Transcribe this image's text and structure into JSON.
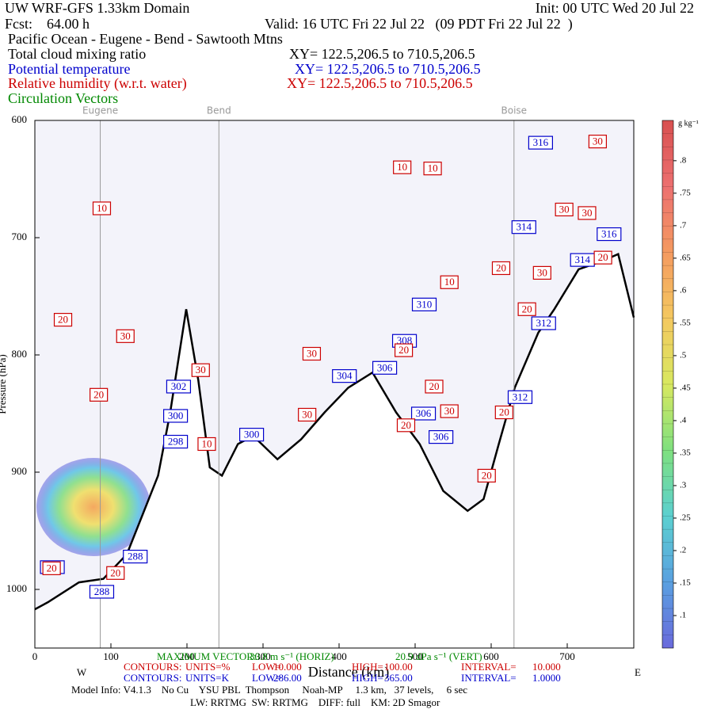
{
  "chart_data": {
    "type": "cross-section",
    "title": "UW WRF-GFS 1.33km Domain",
    "init": "Init: 00 UTC Wed 20 Jul 22",
    "fcst": "Fcst:    64.00 h",
    "valid": "Valid: 16 UTC Fri 22 Jul 22   (09 PDT Fri 22 Jul 22  )",
    "subtitle": "Pacific Ocean - Eugene - Bend - Sawtooth Mtns",
    "series": [
      {
        "name": "Total cloud mixing ratio",
        "color": "#000000",
        "xy": "XY= 122.5,206.5 to 710.5,206.5"
      },
      {
        "name": "Potential temperature",
        "color": "#0000cc",
        "xy": "XY= 122.5,206.5 to 710.5,206.5",
        "x": [
          665,
          643,
          755,
          720,
          512,
          669,
          486,
          460,
          407,
          189,
          185,
          185,
          638,
          511,
          534,
          285,
          88,
          132,
          23
        ],
        "y": [
          619,
          691,
          697,
          719,
          757,
          773,
          788,
          811,
          818,
          827,
          852,
          874,
          836,
          850,
          870,
          868,
          1002,
          972,
          981
        ],
        "values": [
          316,
          314,
          316,
          314,
          310,
          312,
          308,
          306,
          304,
          302,
          300,
          298,
          312,
          306,
          306,
          300,
          288,
          288,
          288
        ]
      },
      {
        "name": "Relative humidity (w.r.t. water)",
        "color": "#cc0000",
        "xy": "XY= 122.5,206.5 to 710.5,206.5",
        "x": [
          740,
          483,
          523,
          88,
          696,
          726,
          613,
          545,
          667,
          747,
          647,
          37,
          119,
          364,
          485,
          84,
          218,
          525,
          545,
          358,
          488,
          226,
          617,
          594,
          22,
          106
        ],
        "y": [
          618,
          640,
          641,
          675,
          676,
          679,
          726,
          738,
          730,
          717,
          761,
          770,
          784,
          799,
          796,
          834,
          813,
          827,
          848,
          851,
          860,
          876,
          849,
          903,
          982,
          986
        ],
        "values": [
          30,
          10,
          10,
          10,
          30,
          30,
          20,
          10,
          30,
          20,
          20,
          20,
          30,
          30,
          20,
          20,
          30,
          20,
          30,
          30,
          20,
          10,
          20,
          20,
          20,
          20
        ]
      },
      {
        "name": "Circulation Vectors",
        "color": "#008800"
      }
    ],
    "terrain": {
      "x": [
        0,
        17,
        58,
        90,
        121,
        162,
        178,
        199,
        215,
        230,
        246,
        267,
        287,
        319,
        350,
        381,
        412,
        444,
        475,
        506,
        537,
        569,
        590,
        610,
        631,
        662,
        683,
        715,
        746,
        767,
        787.5
      ],
      "y": [
        1017,
        1011,
        994,
        991,
        970,
        903,
        849,
        761,
        822,
        896,
        903,
        876,
        869,
        889,
        872,
        849,
        828,
        815,
        849,
        876,
        916,
        933,
        923,
        876,
        828,
        781,
        761,
        727,
        720,
        714,
        768
      ]
    },
    "landmarks": [
      {
        "name": "Eugene",
        "x": 86
      },
      {
        "name": "Bend",
        "x": 242
      },
      {
        "name": "Boise",
        "x": 630
      }
    ],
    "xlabel": "Distance (km)",
    "ylabel": "Pressure (hPa)",
    "xlim": [
      0,
      787.5
    ],
    "xticks": [
      0,
      100,
      200,
      300,
      400,
      500,
      600,
      700
    ],
    "ylim": [
      1050,
      600
    ],
    "yticks": [
      600,
      700,
      800,
      900,
      1000
    ],
    "west": "W",
    "east": "E",
    "colorbar": {
      "units": "g kg⁻¹",
      "lim": [
        0.05,
        0.862
      ],
      "colors": [
        "#6a6adc",
        "#5aa0e0",
        "#5cd0d0",
        "#7fe07f",
        "#d8e860",
        "#f4c860",
        "#f49a60",
        "#ec7070",
        "#d85050"
      ],
      "ticks": [
        {
          "value": 0.1,
          "label": ".1"
        },
        {
          "value": 0.15,
          "label": ".15"
        },
        {
          "value": 0.2,
          "label": ".2"
        },
        {
          "value": 0.25,
          "label": ".25"
        },
        {
          "value": 0.3,
          "label": ".3"
        },
        {
          "value": 0.35,
          "label": ".35"
        },
        {
          "value": 0.4,
          "label": ".4"
        },
        {
          "value": 0.45,
          "label": ".45"
        },
        {
          "value": 0.5,
          "label": ".5"
        },
        {
          "value": 0.55,
          "label": ".55"
        },
        {
          "value": 0.6,
          "label": ".6"
        },
        {
          "value": 0.65,
          "label": ".65"
        },
        {
          "value": 0.7,
          "label": ".7"
        },
        {
          "value": 0.75,
          "label": ".75"
        },
        {
          "value": 0.8,
          "label": ".8"
        }
      ]
    },
    "footer": {
      "max_vector": [
        "MAXIMUM VECTOR:",
        "30.8 m s⁻¹ (HORIZ)",
        "20.9 dPa s⁻¹ (VERT)"
      ],
      "contours_rh": [
        "CONTOURS:",
        "UNITS=%",
        "LOW=",
        "10.000",
        "HIGH=",
        "100.00",
        "INTERVAL=",
        "10.000"
      ],
      "contours_theta": [
        "CONTOURS:",
        "UNITS=K",
        "LOW=",
        "286.00",
        "HIGH=",
        "365.00",
        "INTERVAL=",
        "1.0000"
      ],
      "model_info": "Model Info: V4.1.3    No Cu    YSU PBL  Thompson     Noah-MP     1.3 km,   37 levels,     6 sec",
      "physics": "LW: RRTMG  SW: RRTMG    DIFF: full    KM: 2D Smagor"
    }
  }
}
